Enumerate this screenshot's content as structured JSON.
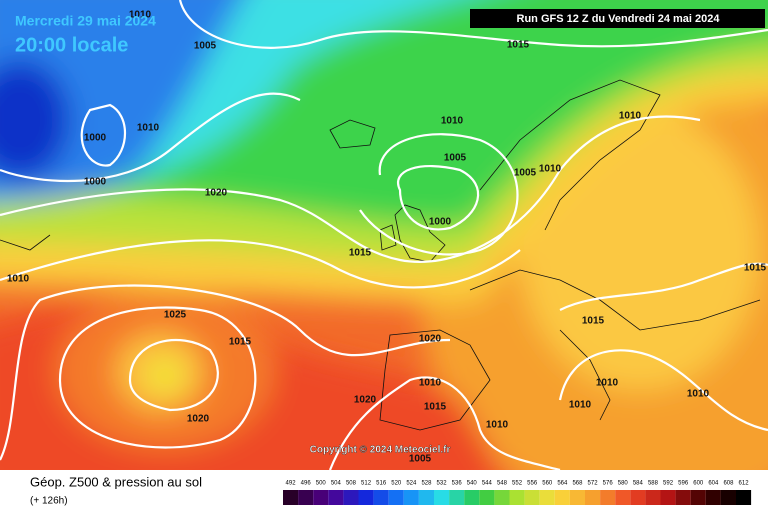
{
  "header": {
    "valid_date": "Mercredi 29 mai 2024",
    "local_time": "20:00 locale",
    "run": "Run GFS 12 Z du Vendredi 24 mai 2024"
  },
  "copyright": "Copyright © 2024 Meteociel.fr",
  "footer": {
    "title": "Géop. Z500 & pression au sol",
    "lead": "(+ 126h)"
  },
  "legend": {
    "labels": [
      492,
      496,
      500,
      504,
      508,
      512,
      516,
      520,
      524,
      528,
      532,
      536,
      540,
      544,
      548,
      552,
      556,
      560,
      564,
      568,
      572,
      576,
      580,
      584,
      588,
      592,
      596,
      600,
      604,
      608,
      612
    ]
  },
  "isobars": {
    "labels": [
      1010,
      1005,
      1015,
      1000,
      1010,
      1000,
      1010,
      1005,
      1020,
      1000,
      1005,
      1010,
      1010,
      1015,
      1010,
      1025,
      1015,
      1020,
      1010,
      1015,
      1020,
      1020,
      1010,
      1005,
      1015,
      1010,
      1010,
      1010,
      1015
    ]
  }
}
